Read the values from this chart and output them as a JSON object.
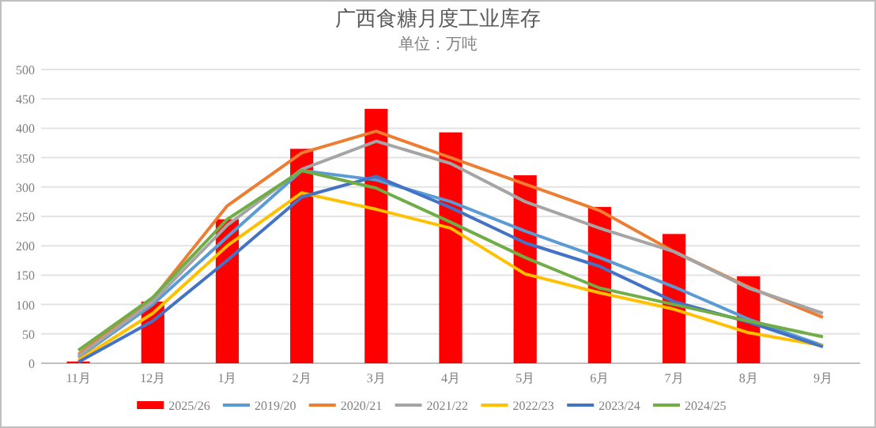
{
  "chart_data": {
    "type": "bar",
    "title": "广西食糖月度工业库存",
    "subtitle": "单位：万吨",
    "categories": [
      "11月",
      "12月",
      "1月",
      "2月",
      "3月",
      "4月",
      "5月",
      "6月",
      "7月",
      "8月",
      "9月"
    ],
    "series": [
      {
        "name": "2025/26",
        "color": "#ff0000",
        "values": [
          3,
          105,
          245,
          365,
          433,
          393,
          320,
          266,
          220,
          148,
          null
        ]
      },
      {
        "name": "2019/20",
        "type": "line",
        "color": "#5b9bd5",
        "values": [
          10,
          100,
          215,
          328,
          312,
          275,
          225,
          180,
          130,
          75,
          30
        ]
      },
      {
        "name": "2020/21",
        "type": "line",
        "color": "#ed7d31",
        "values": [
          15,
          110,
          268,
          358,
          395,
          350,
          305,
          260,
          190,
          130,
          78
        ]
      },
      {
        "name": "2021/22",
        "type": "line",
        "color": "#a5a5a5",
        "values": [
          12,
          105,
          235,
          330,
          378,
          340,
          275,
          230,
          190,
          128,
          85
        ]
      },
      {
        "name": "2022/23",
        "type": "line",
        "color": "#ffc000",
        "values": [
          5,
          85,
          200,
          290,
          262,
          230,
          152,
          120,
          92,
          52,
          30
        ]
      },
      {
        "name": "2023/24",
        "type": "line",
        "color": "#4472c4",
        "values": [
          2,
          72,
          175,
          283,
          318,
          265,
          205,
          165,
          105,
          70,
          28
        ]
      },
      {
        "name": "2024/25",
        "type": "line",
        "color": "#70ad47",
        "values": [
          22,
          112,
          245,
          328,
          298,
          240,
          180,
          128,
          100,
          72,
          45
        ]
      }
    ],
    "ylim": [
      0,
      500
    ],
    "yticks": [
      0,
      50,
      100,
      150,
      200,
      250,
      300,
      350,
      400,
      450,
      500
    ],
    "grid": "y",
    "legend": "bottom",
    "marker": "none",
    "line_style": "solid"
  }
}
